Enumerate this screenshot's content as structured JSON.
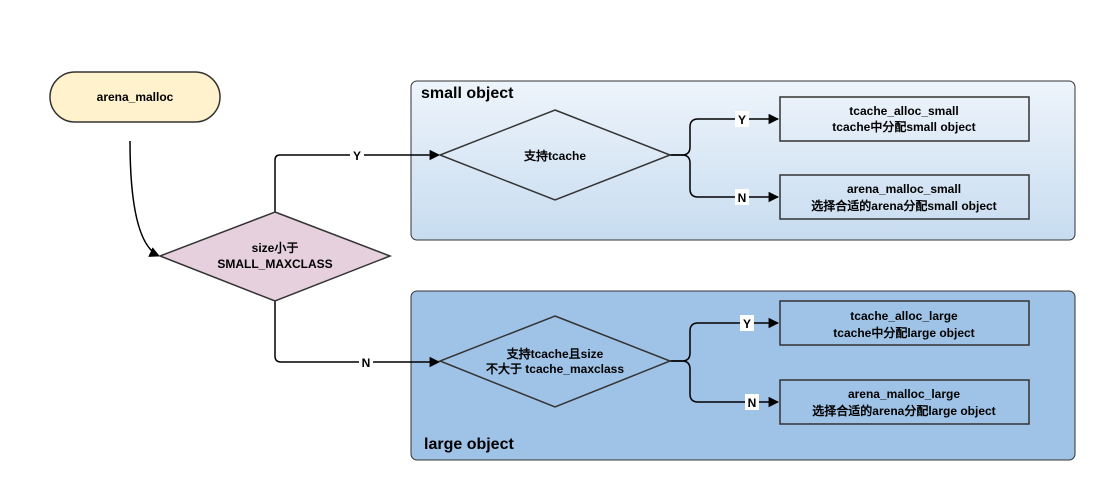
{
  "colors": {
    "start_fill": "#fff2cc",
    "start_stroke": "#333333",
    "decision_main_fill": "#e6d0de",
    "small_group_top": "#eef4fb",
    "small_group_bottom": "#c7dcf0",
    "large_group_fill": "#9fc3e7",
    "node_stroke": "#333333",
    "edge_stroke": "#000000"
  },
  "nodes": {
    "start": {
      "label": "arena_malloc"
    },
    "size_check": {
      "line1": "size小于",
      "line2": "SMALL_MAXCLASS"
    },
    "tcache_small_check": {
      "label": "支持tcache"
    },
    "tcache_large_check": {
      "line1": "支持tcache且size",
      "line2": "不大于 tcache_maxclass"
    },
    "tcache_alloc_small": {
      "line1": "tcache_alloc_small",
      "line2": "tcache中分配small object"
    },
    "arena_malloc_small": {
      "line1": "arena_malloc_small",
      "line2": "选择合适的arena分配small object"
    },
    "tcache_alloc_large": {
      "line1": "tcache_alloc_large",
      "line2": "tcache中分配large object"
    },
    "arena_malloc_large": {
      "line1": "arena_malloc_large",
      "line2": "选择合适的arena分配large object"
    }
  },
  "groups": {
    "small": {
      "title": "small object"
    },
    "large": {
      "title": "large object"
    }
  },
  "edges": {
    "size_yes": "Y",
    "size_no": "N",
    "small_yes": "Y",
    "small_no": "N",
    "large_yes": "Y",
    "large_no": "N"
  }
}
